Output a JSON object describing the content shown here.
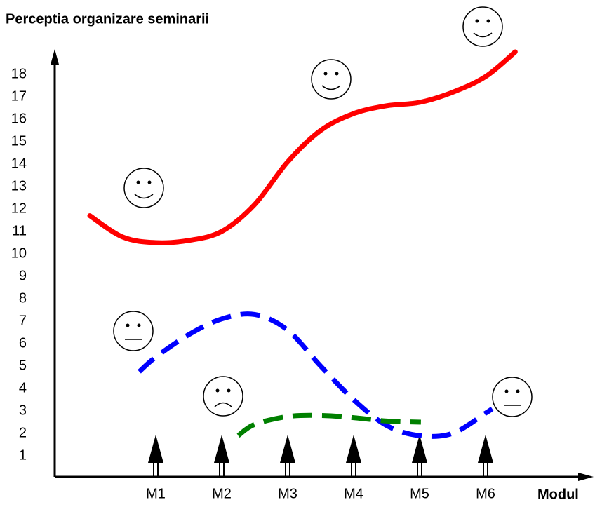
{
  "chart_data": {
    "type": "line",
    "title": "Perceptia organizare seminarii",
    "x_label": "Modul",
    "xlim": [
      -0.5,
      7.5
    ],
    "xticks": [
      {
        "value": 1,
        "label": "M1"
      },
      {
        "value": 2,
        "label": "M2"
      },
      {
        "value": 3,
        "label": "M3"
      },
      {
        "value": 4,
        "label": "M4"
      },
      {
        "value": 5,
        "label": "M5"
      },
      {
        "value": 6,
        "label": "M6"
      }
    ],
    "ylim": [
      0,
      19
    ],
    "yticks": [
      1,
      2,
      3,
      4,
      5,
      6,
      7,
      8,
      9,
      10,
      11,
      12,
      13,
      14,
      15,
      16,
      17,
      18
    ],
    "series": [
      {
        "color": "#ff0000",
        "style": "solid",
        "x": [
          0,
          0.5,
          1,
          1.5,
          2,
          2.5,
          3,
          3.5,
          4,
          4.5,
          5,
          5.5,
          6,
          6.45
        ],
        "values": [
          11.7,
          10.75,
          10.5,
          10.6,
          11,
          12.2,
          14.1,
          15.5,
          16.25,
          16.6,
          16.75,
          17.2,
          17.9,
          19
        ]
      },
      {
        "color": "#0000ff",
        "style": "dashed",
        "x": [
          0.75,
          1,
          1.5,
          2,
          2.5,
          3,
          3.5,
          4,
          4.5,
          5,
          5.5,
          6,
          6.1
        ],
        "values": [
          4.75,
          5.4,
          6.4,
          7.1,
          7.3,
          6.6,
          5,
          3.5,
          2.35,
          1.9,
          2,
          2.9,
          3.1
        ]
      },
      {
        "color": "#008000",
        "style": "dashed",
        "x": [
          2.25,
          2.5,
          3,
          3.5,
          4,
          4.5,
          5.02
        ],
        "values": [
          1.9,
          2.4,
          2.75,
          2.8,
          2.7,
          2.55,
          2.5
        ]
      }
    ]
  }
}
